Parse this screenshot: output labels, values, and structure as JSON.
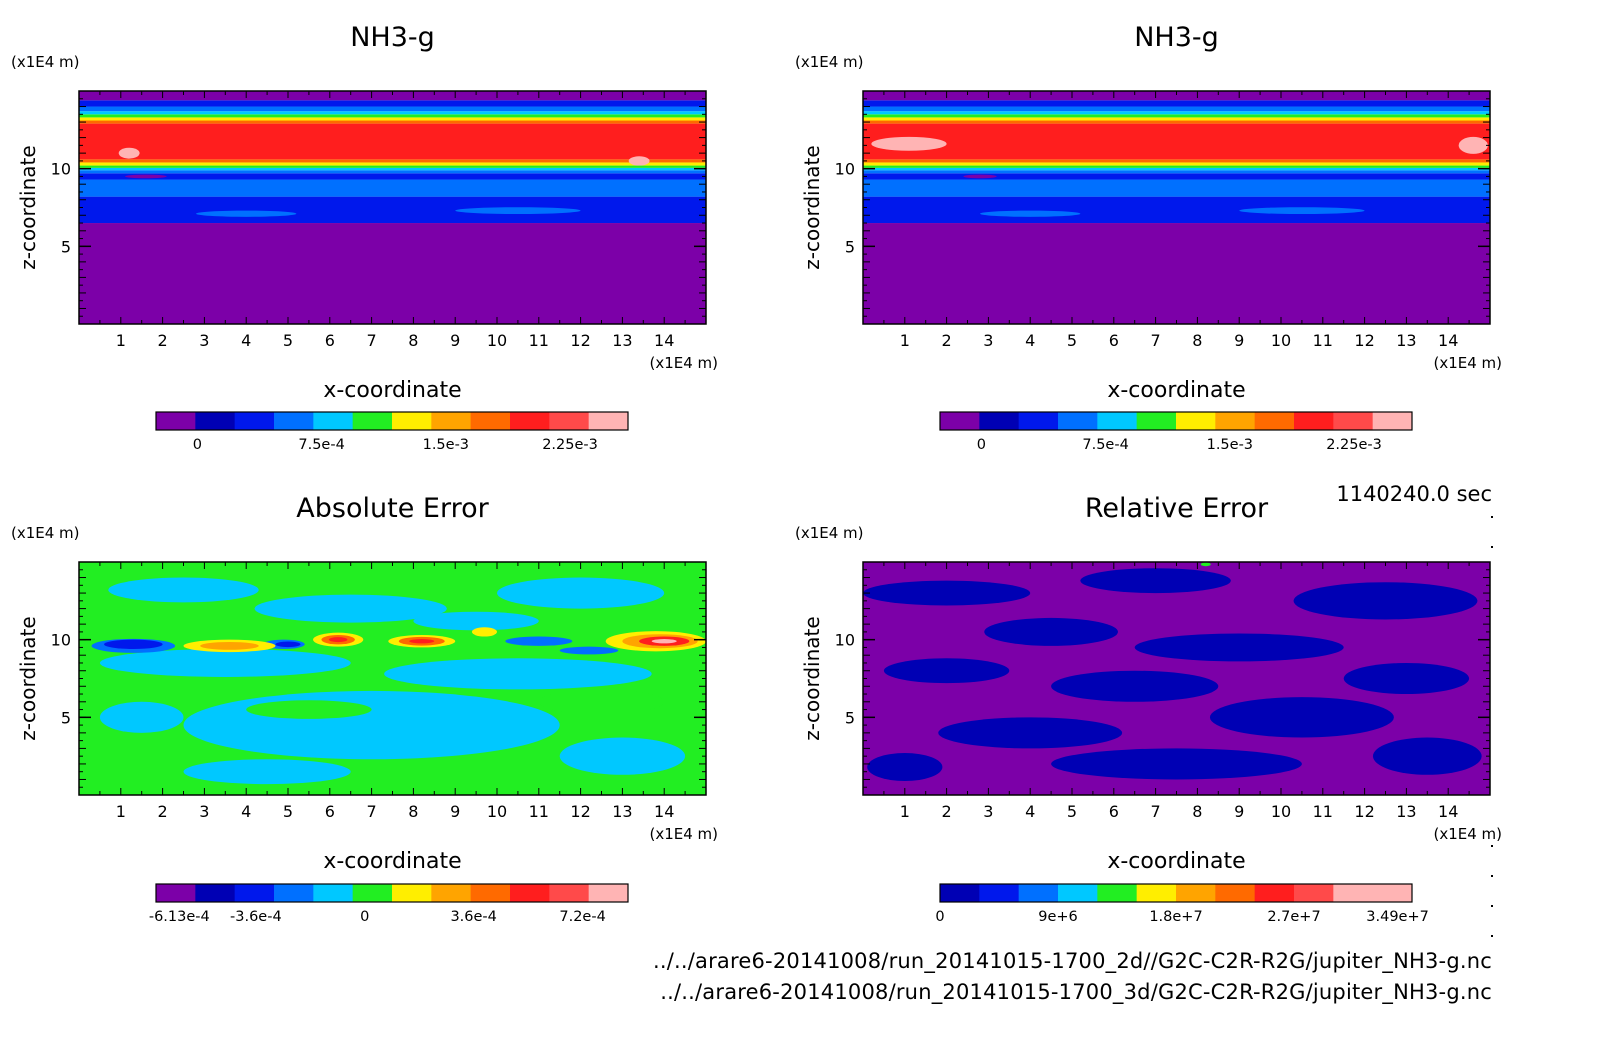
{
  "timestamp": "1140240.0 sec",
  "files": [
    "../../arare6-20141008/run_20141015-1700_2d//G2C-C2R-R2G/jupiter_NH3-g.nc",
    "../../arare6-20141008/run_20141015-1700_3d/G2C-C2R-R2G/jupiter_NH3-g.nc"
  ],
  "palette": [
    "#7c00a8",
    "#0000b4",
    "#0018ec",
    "#0070ff",
    "#00c8ff",
    "#22ee22",
    "#ffee00",
    "#ffa400",
    "#ff6a00",
    "#ff1e1e",
    "#ff4a4a",
    "#ffb4b4"
  ],
  "chart_data": [
    {
      "type": "heatmap",
      "title": "NH3-g",
      "xlabel": "x-coordinate",
      "ylabel": "z-coordinate",
      "x_unit": "(x1E4 m)",
      "y_unit": "(x1E4 m)",
      "xlim": [
        0,
        15
      ],
      "ylim": [
        0,
        15
      ],
      "xticks": [
        1,
        2,
        3,
        4,
        5,
        6,
        7,
        8,
        9,
        10,
        11,
        12,
        13,
        14
      ],
      "yticks": [
        5,
        10
      ],
      "colorbar": {
        "labels": [
          "0",
          "7.5e-4",
          "1.5e-3",
          "2.25e-3"
        ],
        "label_values": [
          0,
          0.00075,
          0.0015,
          0.00225
        ],
        "min": -0.00025,
        "max": 0.0026
      },
      "bands": [
        {
          "z": [
            0,
            6.5
          ],
          "color": "#7c00a8"
        },
        {
          "z": [
            6.5,
            8.2
          ],
          "color": "#0018ec"
        },
        {
          "z": [
            8.2,
            9.3
          ],
          "color": "#0070ff"
        },
        {
          "z": [
            9.3,
            9.7
          ],
          "color": "#0018ec"
        },
        {
          "z": [
            9.7,
            9.9
          ],
          "color": "#0070ff"
        },
        {
          "z": [
            9.9,
            10.05
          ],
          "color": "#00c8ff"
        },
        {
          "z": [
            10.05,
            10.2
          ],
          "color": "#22ee22"
        },
        {
          "z": [
            10.2,
            10.4
          ],
          "color": "#ffee00"
        },
        {
          "z": [
            10.4,
            10.6
          ],
          "color": "#ff6a00"
        },
        {
          "z": [
            10.6,
            12.9
          ],
          "color": "#ff1e1e"
        },
        {
          "z": [
            12.9,
            13.1
          ],
          "color": "#ff6a00"
        },
        {
          "z": [
            13.1,
            13.3
          ],
          "color": "#ffee00"
        },
        {
          "z": [
            13.3,
            13.5
          ],
          "color": "#22ee22"
        },
        {
          "z": [
            13.5,
            13.7
          ],
          "color": "#00c8ff"
        },
        {
          "z": [
            13.7,
            14.0
          ],
          "color": "#0070ff"
        },
        {
          "z": [
            14.0,
            14.4
          ],
          "color": "#0018ec"
        },
        {
          "z": [
            14.4,
            15
          ],
          "color": "#7c00a8"
        }
      ],
      "blobs": [
        {
          "x": 1.2,
          "z": 11.0,
          "rx": 0.25,
          "rz": 0.35,
          "color": "#ffb4b4"
        },
        {
          "x": 13.4,
          "z": 10.5,
          "rx": 0.25,
          "rz": 0.3,
          "color": "#ffb4b4"
        },
        {
          "x": 4.0,
          "z": 7.1,
          "rx": 1.2,
          "rz": 0.2,
          "color": "#0070ff"
        },
        {
          "x": 10.5,
          "z": 7.3,
          "rx": 1.5,
          "rz": 0.22,
          "color": "#0070ff"
        },
        {
          "x": 1.6,
          "z": 9.5,
          "rx": 0.5,
          "rz": 0.12,
          "color": "#7c00a8"
        }
      ]
    },
    {
      "type": "heatmap",
      "title": "NH3-g",
      "xlabel": "x-coordinate",
      "ylabel": "z-coordinate",
      "x_unit": "(x1E4 m)",
      "y_unit": "(x1E4 m)",
      "xlim": [
        0,
        15
      ],
      "ylim": [
        0,
        15
      ],
      "xticks": [
        1,
        2,
        3,
        4,
        5,
        6,
        7,
        8,
        9,
        10,
        11,
        12,
        13,
        14
      ],
      "yticks": [
        5,
        10
      ],
      "colorbar": {
        "labels": [
          "0",
          "7.5e-4",
          "1.5e-3",
          "2.25e-3"
        ],
        "label_values": [
          0,
          0.00075,
          0.0015,
          0.00225
        ],
        "min": -0.00025,
        "max": 0.0026
      },
      "bands": [
        {
          "z": [
            0,
            6.5
          ],
          "color": "#7c00a8"
        },
        {
          "z": [
            6.5,
            8.2
          ],
          "color": "#0018ec"
        },
        {
          "z": [
            8.2,
            9.3
          ],
          "color": "#0070ff"
        },
        {
          "z": [
            9.3,
            9.7
          ],
          "color": "#0018ec"
        },
        {
          "z": [
            9.7,
            9.9
          ],
          "color": "#0070ff"
        },
        {
          "z": [
            9.9,
            10.05
          ],
          "color": "#00c8ff"
        },
        {
          "z": [
            10.05,
            10.2
          ],
          "color": "#22ee22"
        },
        {
          "z": [
            10.2,
            10.4
          ],
          "color": "#ffee00"
        },
        {
          "z": [
            10.4,
            10.6
          ],
          "color": "#ff6a00"
        },
        {
          "z": [
            10.6,
            12.9
          ],
          "color": "#ff1e1e"
        },
        {
          "z": [
            12.9,
            13.1
          ],
          "color": "#ff6a00"
        },
        {
          "z": [
            13.1,
            13.3
          ],
          "color": "#ffee00"
        },
        {
          "z": [
            13.3,
            13.5
          ],
          "color": "#22ee22"
        },
        {
          "z": [
            13.5,
            13.7
          ],
          "color": "#00c8ff"
        },
        {
          "z": [
            13.7,
            14.0
          ],
          "color": "#0070ff"
        },
        {
          "z": [
            14.0,
            14.4
          ],
          "color": "#0018ec"
        },
        {
          "z": [
            14.4,
            15
          ],
          "color": "#7c00a8"
        }
      ],
      "blobs": [
        {
          "x": 1.1,
          "z": 11.6,
          "rx": 0.9,
          "rz": 0.45,
          "color": "#ffb4b4"
        },
        {
          "x": 14.6,
          "z": 11.5,
          "rx": 0.35,
          "rz": 0.55,
          "color": "#ffb4b4"
        },
        {
          "x": 4.0,
          "z": 7.1,
          "rx": 1.2,
          "rz": 0.2,
          "color": "#0070ff"
        },
        {
          "x": 10.5,
          "z": 7.3,
          "rx": 1.5,
          "rz": 0.22,
          "color": "#0070ff"
        },
        {
          "x": 2.8,
          "z": 9.5,
          "rx": 0.4,
          "rz": 0.12,
          "color": "#7c00a8"
        }
      ]
    },
    {
      "type": "heatmap",
      "title": "Absolute Error",
      "xlabel": "x-coordinate",
      "ylabel": "z-coordinate",
      "x_unit": "(x1E4 m)",
      "y_unit": "(x1E4 m)",
      "xlim": [
        0,
        15
      ],
      "ylim": [
        0,
        15
      ],
      "xticks": [
        1,
        2,
        3,
        4,
        5,
        6,
        7,
        8,
        9,
        10,
        11,
        12,
        13,
        14
      ],
      "yticks": [
        5,
        10
      ],
      "colorbar": {
        "labels": [
          "-6.13e-4",
          "-3.6e-4",
          "0",
          "3.6e-4",
          "7.2e-4"
        ],
        "label_values": [
          -0.000613,
          -0.00036,
          0,
          0.00036,
          0.00072
        ],
        "min": -0.00069,
        "max": 0.00087
      },
      "background": "#22ee22",
      "blobs": [
        {
          "x": 2.5,
          "z": 13.2,
          "rx": 1.8,
          "rz": 0.8,
          "color": "#00c8ff"
        },
        {
          "x": 6.5,
          "z": 12.0,
          "rx": 2.3,
          "rz": 0.9,
          "color": "#00c8ff"
        },
        {
          "x": 12.0,
          "z": 13.0,
          "rx": 2.0,
          "rz": 1.0,
          "color": "#00c8ff"
        },
        {
          "x": 9.5,
          "z": 11.2,
          "rx": 1.5,
          "rz": 0.6,
          "color": "#00c8ff"
        },
        {
          "x": 3.5,
          "z": 8.5,
          "rx": 3.0,
          "rz": 0.9,
          "color": "#00c8ff"
        },
        {
          "x": 10.5,
          "z": 7.8,
          "rx": 3.2,
          "rz": 1.0,
          "color": "#00c8ff"
        },
        {
          "x": 7.0,
          "z": 4.5,
          "rx": 4.5,
          "rz": 2.2,
          "color": "#00c8ff"
        },
        {
          "x": 1.5,
          "z": 5.0,
          "rx": 1.0,
          "rz": 1.0,
          "color": "#00c8ff"
        },
        {
          "x": 13.0,
          "z": 2.5,
          "rx": 1.5,
          "rz": 1.2,
          "color": "#00c8ff"
        },
        {
          "x": 4.5,
          "z": 1.5,
          "rx": 2.0,
          "rz": 0.8,
          "color": "#00c8ff"
        },
        {
          "x": 12.5,
          "z": 6.0,
          "rx": 1.5,
          "rz": 0.8,
          "color": "#22ee22"
        },
        {
          "x": 5.5,
          "z": 5.5,
          "rx": 1.5,
          "rz": 0.6,
          "color": "#22ee22"
        },
        {
          "x": 1.3,
          "z": 9.6,
          "rx": 1.0,
          "rz": 0.45,
          "color": "#0070ff"
        },
        {
          "x": 1.3,
          "z": 9.7,
          "rx": 0.7,
          "rz": 0.3,
          "color": "#0018ec"
        },
        {
          "x": 4.9,
          "z": 9.7,
          "rx": 0.5,
          "rz": 0.3,
          "color": "#0070ff"
        },
        {
          "x": 5.0,
          "z": 9.7,
          "rx": 0.3,
          "rz": 0.18,
          "color": "#0018ec"
        },
        {
          "x": 11.0,
          "z": 9.9,
          "rx": 0.8,
          "rz": 0.3,
          "color": "#0070ff"
        },
        {
          "x": 12.2,
          "z": 9.3,
          "rx": 0.7,
          "rz": 0.25,
          "color": "#0070ff"
        },
        {
          "x": 3.6,
          "z": 9.6,
          "rx": 1.1,
          "rz": 0.4,
          "color": "#ffee00"
        },
        {
          "x": 3.6,
          "z": 9.6,
          "rx": 0.7,
          "rz": 0.25,
          "color": "#ffa400"
        },
        {
          "x": 6.2,
          "z": 10.0,
          "rx": 0.6,
          "rz": 0.45,
          "color": "#ffee00"
        },
        {
          "x": 6.2,
          "z": 10.0,
          "rx": 0.4,
          "rz": 0.3,
          "color": "#ff6a00"
        },
        {
          "x": 6.2,
          "z": 10.0,
          "rx": 0.22,
          "rz": 0.16,
          "color": "#ff1e1e"
        },
        {
          "x": 8.2,
          "z": 9.9,
          "rx": 0.8,
          "rz": 0.4,
          "color": "#ffee00"
        },
        {
          "x": 8.2,
          "z": 9.9,
          "rx": 0.55,
          "rz": 0.28,
          "color": "#ff6a00"
        },
        {
          "x": 8.2,
          "z": 9.9,
          "rx": 0.3,
          "rz": 0.14,
          "color": "#ff1e1e"
        },
        {
          "x": 9.7,
          "z": 10.5,
          "rx": 0.3,
          "rz": 0.3,
          "color": "#ffee00"
        },
        {
          "x": 13.8,
          "z": 9.9,
          "rx": 1.2,
          "rz": 0.65,
          "color": "#ffee00"
        },
        {
          "x": 13.9,
          "z": 9.9,
          "rx": 0.9,
          "rz": 0.45,
          "color": "#ffa400"
        },
        {
          "x": 14.0,
          "z": 9.9,
          "rx": 0.6,
          "rz": 0.3,
          "color": "#ff1e1e"
        },
        {
          "x": 14.0,
          "z": 9.9,
          "rx": 0.3,
          "rz": 0.14,
          "color": "#ffb4b4"
        }
      ]
    },
    {
      "type": "heatmap",
      "title": "Relative Error",
      "xlabel": "x-coordinate",
      "ylabel": "z-coordinate",
      "x_unit": "(x1E4 m)",
      "y_unit": "(x1E4 m)",
      "xlim": [
        0,
        15
      ],
      "ylim": [
        0,
        15
      ],
      "xticks": [
        1,
        2,
        3,
        4,
        5,
        6,
        7,
        8,
        9,
        10,
        11,
        12,
        13,
        14
      ],
      "yticks": [
        5,
        10
      ],
      "colorbar": {
        "labels": [
          "0",
          "9e+6",
          "1.8e+7",
          "2.7e+7",
          "3.49e+7"
        ],
        "label_values": [
          0,
          9000000,
          18000000,
          27000000,
          34900000
        ],
        "min": 0,
        "max": 36000000
      },
      "background": "#7c00a8",
      "blobs": [
        {
          "x": 2.0,
          "z": 13.0,
          "rx": 2.0,
          "rz": 0.8,
          "color": "#0000b4"
        },
        {
          "x": 7.0,
          "z": 13.8,
          "rx": 1.8,
          "rz": 0.8,
          "color": "#0000b4"
        },
        {
          "x": 12.5,
          "z": 12.5,
          "rx": 2.2,
          "rz": 1.2,
          "color": "#0000b4"
        },
        {
          "x": 4.5,
          "z": 10.5,
          "rx": 1.6,
          "rz": 0.9,
          "color": "#0000b4"
        },
        {
          "x": 9.0,
          "z": 9.5,
          "rx": 2.5,
          "rz": 0.9,
          "color": "#0000b4"
        },
        {
          "x": 2.0,
          "z": 8.0,
          "rx": 1.5,
          "rz": 0.8,
          "color": "#0000b4"
        },
        {
          "x": 6.5,
          "z": 7.0,
          "rx": 2.0,
          "rz": 1.0,
          "color": "#0000b4"
        },
        {
          "x": 13.0,
          "z": 7.5,
          "rx": 1.5,
          "rz": 1.0,
          "color": "#0000b4"
        },
        {
          "x": 10.5,
          "z": 5.0,
          "rx": 2.2,
          "rz": 1.3,
          "color": "#0000b4"
        },
        {
          "x": 4.0,
          "z": 4.0,
          "rx": 2.2,
          "rz": 1.0,
          "color": "#0000b4"
        },
        {
          "x": 7.5,
          "z": 2.0,
          "rx": 3.0,
          "rz": 1.0,
          "color": "#0000b4"
        },
        {
          "x": 13.5,
          "z": 2.5,
          "rx": 1.3,
          "rz": 1.2,
          "color": "#0000b4"
        },
        {
          "x": 1.0,
          "z": 1.8,
          "rx": 0.9,
          "rz": 0.9,
          "color": "#0000b4"
        },
        {
          "x": 8.2,
          "z": 14.85,
          "rx": 0.12,
          "rz": 0.12,
          "color": "#22ee22"
        }
      ]
    }
  ]
}
